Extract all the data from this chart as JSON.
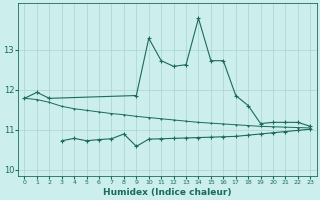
{
  "xlabel": "Humidex (Indice chaleur)",
  "background_color": "#cceeed",
  "grid_color": "#aad4d0",
  "line_color": "#1a6b5a",
  "xlim": [
    -0.5,
    23.5
  ],
  "ylim": [
    9.85,
    14.15
  ],
  "yticks": [
    10,
    11,
    12,
    13
  ],
  "xticks": [
    0,
    1,
    2,
    3,
    4,
    5,
    6,
    7,
    8,
    9,
    10,
    11,
    12,
    13,
    14,
    15,
    16,
    17,
    18,
    19,
    20,
    21,
    22,
    23
  ],
  "line1_x": [
    0,
    1,
    2,
    9,
    10,
    11,
    12,
    13,
    14,
    15,
    16,
    17,
    18,
    19,
    20,
    21,
    22,
    23
  ],
  "line1_y": [
    11.78,
    11.93,
    11.78,
    11.85,
    13.28,
    12.72,
    12.58,
    12.62,
    13.78,
    12.72,
    12.72,
    11.85,
    11.6,
    11.15,
    11.18,
    11.18,
    11.18,
    11.08
  ],
  "line2_x": [
    0,
    1,
    2,
    3,
    4,
    5,
    6,
    7,
    8,
    9,
    10,
    11,
    12,
    13,
    14,
    15,
    16,
    17,
    18,
    19,
    20,
    21,
    22,
    23
  ],
  "line2_y": [
    11.78,
    11.75,
    11.68,
    11.58,
    11.52,
    11.48,
    11.44,
    11.4,
    11.37,
    11.33,
    11.3,
    11.27,
    11.24,
    11.21,
    11.18,
    11.16,
    11.14,
    11.12,
    11.1,
    11.08,
    11.07,
    11.06,
    11.05,
    11.04
  ],
  "line3_x": [
    3,
    4,
    5,
    6,
    7,
    8,
    9,
    10,
    11,
    12,
    13,
    14,
    15,
    16,
    17,
    18,
    19,
    20,
    21,
    22,
    23
  ],
  "line3_y": [
    10.72,
    10.78,
    10.72,
    10.75,
    10.77,
    10.89,
    10.58,
    10.76,
    10.77,
    10.78,
    10.79,
    10.8,
    10.81,
    10.82,
    10.83,
    10.86,
    10.89,
    10.92,
    10.95,
    10.98,
    11.01
  ]
}
